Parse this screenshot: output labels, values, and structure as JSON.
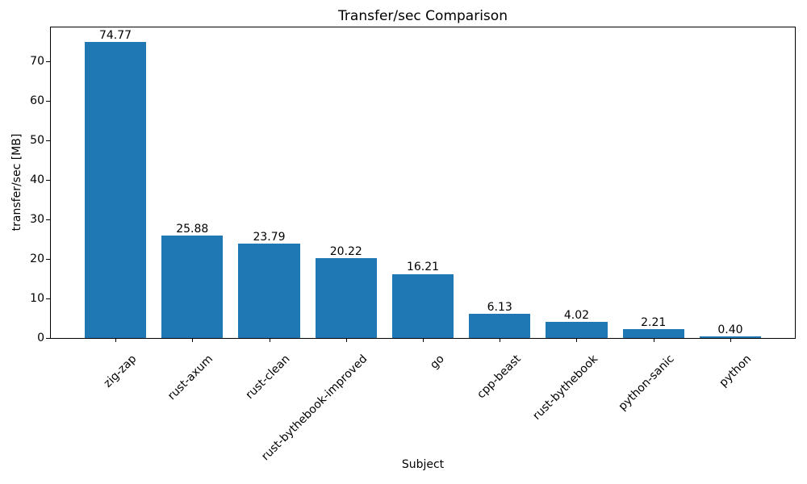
{
  "figure": {
    "background": "#ffffff"
  },
  "chart_data": {
    "type": "bar",
    "title": "Transfer/sec Comparison",
    "xlabel": "Subject",
    "ylabel": "transfer/sec [MB]",
    "categories": [
      "zig-zap",
      "rust-axum",
      "rust-clean",
      "rust-bythebook-improved",
      "go",
      "cpp-beast",
      "rust-bythebook",
      "python-sanic",
      "python"
    ],
    "values": [
      74.77,
      25.88,
      23.79,
      20.22,
      16.21,
      6.13,
      4.02,
      2.21,
      0.4
    ],
    "value_labels": [
      "74.77",
      "25.88",
      "23.79",
      "20.22",
      "16.21",
      "6.13",
      "4.02",
      "2.21",
      "0.40"
    ],
    "yticks": [
      0,
      10,
      20,
      30,
      40,
      50,
      60,
      70
    ],
    "ylim": [
      0,
      78.5
    ],
    "bar_color": "#1f77b4",
    "axis_color": "#000000",
    "text_color": "#000000",
    "grid": false,
    "legend": "none",
    "xtick_rotation_deg": 45
  }
}
